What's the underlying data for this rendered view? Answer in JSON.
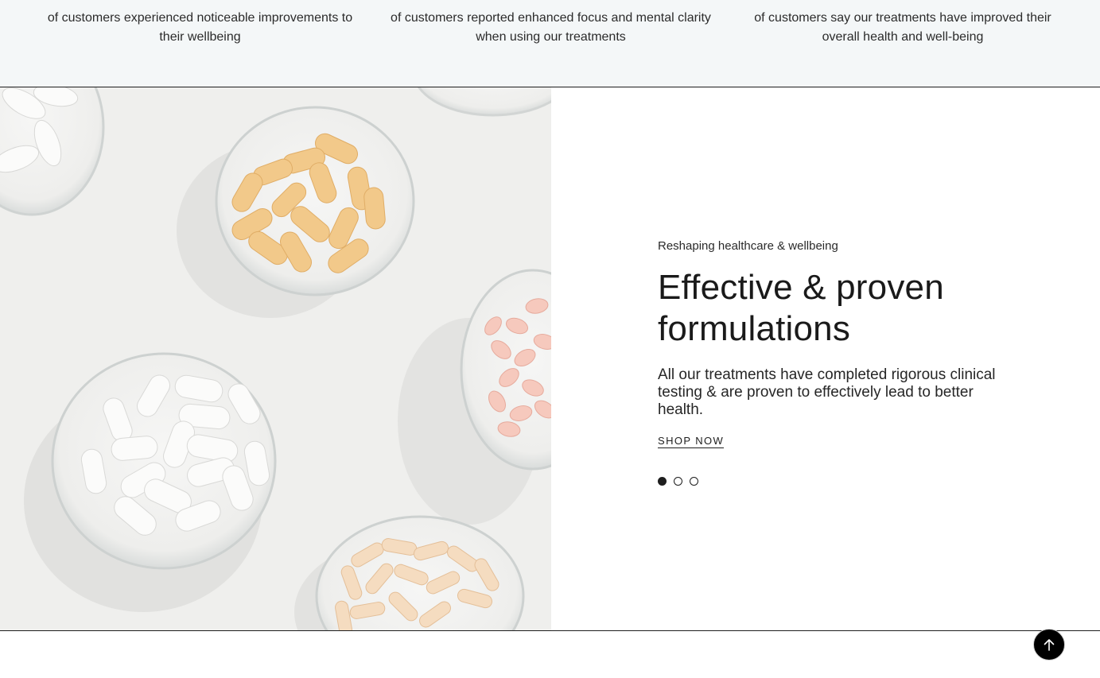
{
  "stats": [
    {
      "text": "of customers experienced noticeable improvements to their wellbeing"
    },
    {
      "text": "of customers reported enhanced focus and mental clarity when using our treatments"
    },
    {
      "text": "of customers say our treatments have improved their overall health and well-being"
    }
  ],
  "hero": {
    "eyebrow": "Reshaping healthcare & wellbeing",
    "headline": "Effective & proven formulations",
    "body": "All our treatments have completed rigorous clinical testing & are proven to effectively lead to better health.",
    "cta_label": "SHOP NOW",
    "slides": {
      "count": 3,
      "active": 1
    }
  },
  "back_to_top": {
    "icon": "arrow-up-icon"
  },
  "colors": {
    "stats_background": "#f4f7f8",
    "text": "#1e1e1e",
    "image_background": "#efefed",
    "orange_pill": "#f2c98a",
    "pink_pill": "#f6c9bd",
    "white_pill": "#fbfbfa",
    "cream_capsule": "#f5dcc0"
  }
}
